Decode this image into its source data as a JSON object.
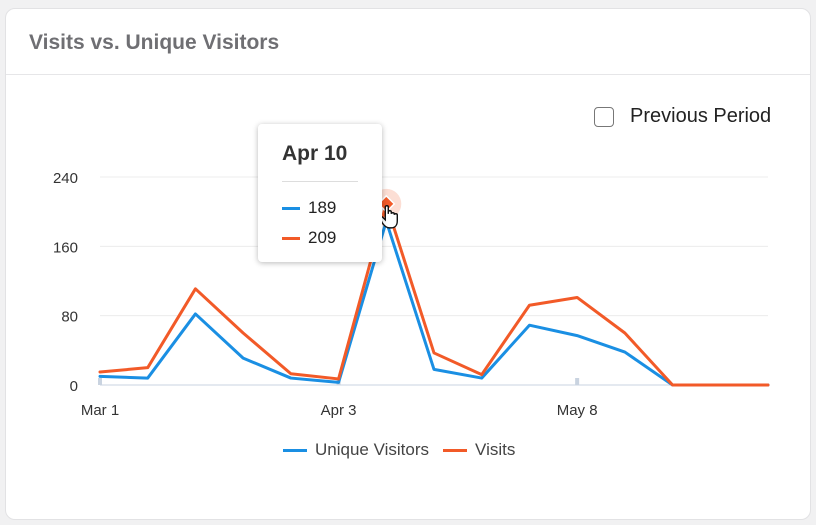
{
  "title": "Visits vs. Unique Visitors",
  "previous_period": {
    "label": "Previous Period",
    "checked": false
  },
  "colors": {
    "unique": "#1a8fe3",
    "visits": "#f25a28",
    "grid": "#ececec",
    "axis_text": "#333333"
  },
  "tooltip": {
    "title": "Apr 10",
    "rows": [
      {
        "series": "Unique Visitors",
        "value": "189",
        "color": "#1a8fe3"
      },
      {
        "series": "Visits",
        "value": "209",
        "color": "#f25a28"
      }
    ]
  },
  "legend": [
    {
      "label": "Unique Visitors",
      "color": "#1a8fe3"
    },
    {
      "label": "Visits",
      "color": "#f25a28"
    }
  ],
  "chart_data": {
    "type": "line",
    "title": "Visits vs. Unique Visitors",
    "x_tick_labels": [
      "Mar 1",
      "Apr 3",
      "May 8"
    ],
    "x_tick_index": [
      0,
      5,
      10
    ],
    "y_ticks": [
      0,
      80,
      160,
      240
    ],
    "ylim": [
      0,
      240
    ],
    "grid": true,
    "legend_position": "bottom",
    "highlight_index": 6,
    "series": [
      {
        "name": "Unique Visitors",
        "color": "#1a8fe3",
        "values": [
          10,
          8,
          82,
          31,
          8,
          3,
          189,
          18,
          8,
          69,
          57,
          38,
          0,
          0,
          0
        ]
      },
      {
        "name": "Visits",
        "color": "#f25a28",
        "values": [
          15,
          20,
          111,
          60,
          13,
          7,
          209,
          37,
          12,
          92,
          101,
          60,
          0,
          0,
          0
        ]
      }
    ]
  }
}
